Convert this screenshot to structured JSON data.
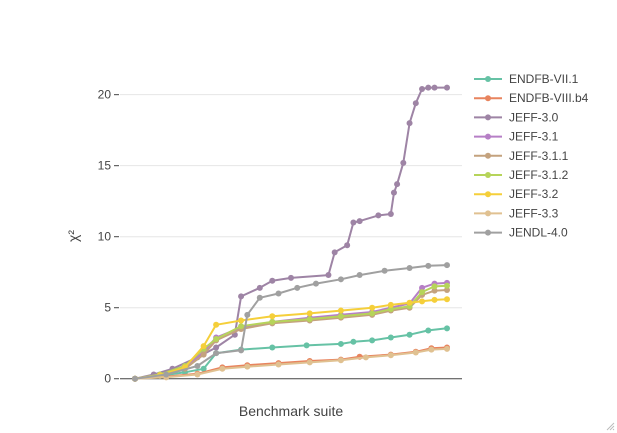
{
  "chart_data": {
    "type": "line",
    "xlabel": "Benchmark suite",
    "ylabel": "χ²",
    "ylim": [
      -0.3,
      22.3
    ],
    "xlim": [
      0,
      100
    ],
    "yticks": [
      0,
      5,
      10,
      15,
      20
    ],
    "ytick_labels": [
      "0",
      "5",
      "10",
      "15",
      "20"
    ],
    "grid": true,
    "legend_position": "top-right",
    "series": [
      {
        "name": "ENDFB-VII.1",
        "color": "#66c2a5",
        "x": [
          0,
          8,
          16,
          22,
          26,
          34,
          44,
          55,
          66,
          70,
          76,
          82,
          88,
          94,
          100
        ],
        "y": [
          0,
          0.2,
          0.45,
          0.7,
          1.8,
          2.05,
          2.2,
          2.35,
          2.45,
          2.6,
          2.7,
          2.9,
          3.1,
          3.4,
          3.55
        ]
      },
      {
        "name": "ENDFB-VIII.b4",
        "color": "#e8845e",
        "x": [
          0,
          10,
          20,
          28,
          36,
          46,
          56,
          66,
          72,
          82,
          90,
          95,
          100
        ],
        "y": [
          0,
          0.15,
          0.35,
          0.8,
          0.95,
          1.1,
          1.25,
          1.35,
          1.55,
          1.7,
          1.9,
          2.15,
          2.2
        ]
      },
      {
        "name": "JEFF-3.0",
        "color": "#9e84a5",
        "x": [
          0,
          6,
          12,
          20,
          26,
          32,
          34,
          40,
          44,
          50,
          62,
          64,
          68,
          70,
          72,
          78,
          82,
          83,
          84,
          86,
          88,
          90,
          92,
          94,
          96,
          100
        ],
        "y": [
          0,
          0.3,
          0.7,
          1.5,
          2.2,
          3.1,
          5.8,
          6.4,
          6.9,
          7.1,
          7.3,
          8.9,
          9.4,
          11,
          11.1,
          11.5,
          11.6,
          13.1,
          13.7,
          15.2,
          18,
          19.4,
          20.4,
          20.5,
          20.5,
          20.5
        ]
      },
      {
        "name": "JEFF-3.1",
        "color": "#b67fc6",
        "x": [
          0,
          8,
          16,
          22,
          26,
          34,
          44,
          56,
          66,
          76,
          82,
          88,
          92,
          96,
          100
        ],
        "y": [
          0,
          0.3,
          0.8,
          1.9,
          2.9,
          3.6,
          4.0,
          4.3,
          4.5,
          4.7,
          5.0,
          5.3,
          6.4,
          6.7,
          6.75
        ]
      },
      {
        "name": "JEFF-3.1.1",
        "color": "#c4a27e",
        "x": [
          0,
          8,
          16,
          22,
          26,
          34,
          44,
          56,
          66,
          76,
          82,
          88,
          92,
          96,
          100
        ],
        "y": [
          0,
          0.2,
          0.7,
          1.7,
          2.7,
          3.5,
          3.9,
          4.1,
          4.3,
          4.5,
          4.8,
          5.0,
          5.9,
          6.2,
          6.25
        ]
      },
      {
        "name": "JEFF-3.1.2",
        "color": "#b6d45a",
        "x": [
          0,
          8,
          16,
          22,
          26,
          34,
          44,
          56,
          66,
          76,
          82,
          88,
          92,
          96,
          100
        ],
        "y": [
          0,
          0.3,
          0.9,
          2.1,
          2.8,
          3.7,
          4.0,
          4.2,
          4.4,
          4.6,
          4.9,
          5.1,
          6.1,
          6.5,
          6.55
        ]
      },
      {
        "name": "JEFF-3.2",
        "color": "#f5cf3a",
        "x": [
          0,
          8,
          16,
          22,
          26,
          34,
          44,
          56,
          66,
          76,
          82,
          88,
          92,
          96,
          100
        ],
        "y": [
          0,
          0.25,
          0.8,
          2.3,
          3.8,
          4.1,
          4.4,
          4.6,
          4.8,
          5.0,
          5.2,
          5.35,
          5.45,
          5.55,
          5.6
        ]
      },
      {
        "name": "JEFF-3.3",
        "color": "#e0c191",
        "x": [
          0,
          10,
          20,
          28,
          36,
          46,
          56,
          66,
          74,
          82,
          90,
          95,
          100
        ],
        "y": [
          0,
          0.1,
          0.3,
          0.7,
          0.85,
          1.0,
          1.15,
          1.3,
          1.5,
          1.65,
          1.85,
          2.05,
          2.1
        ]
      },
      {
        "name": "JENDL-4.0",
        "color": "#a0a0a0",
        "x": [
          0,
          10,
          20,
          26,
          34,
          36,
          40,
          46,
          52,
          58,
          66,
          72,
          80,
          88,
          94,
          100
        ],
        "y": [
          0,
          0.3,
          0.9,
          1.8,
          2.0,
          4.5,
          5.7,
          6.0,
          6.4,
          6.7,
          7.0,
          7.3,
          7.6,
          7.8,
          7.95,
          8.0
        ]
      }
    ]
  }
}
